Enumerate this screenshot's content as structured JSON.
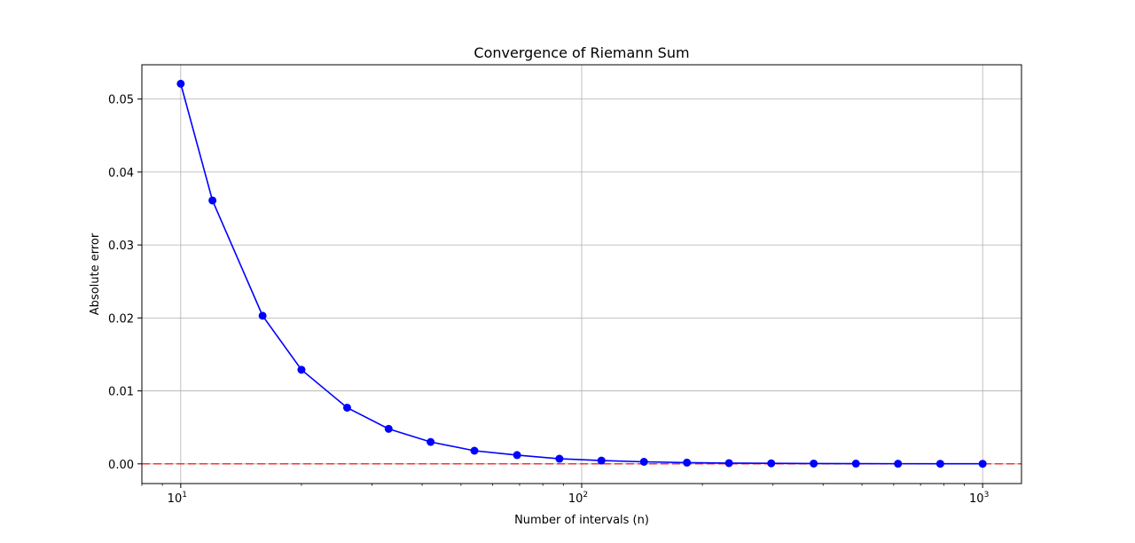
{
  "chart_data": {
    "type": "line",
    "title": "Convergence of Riemann Sum",
    "xlabel": "Number of intervals (n)",
    "ylabel": "Absolute error",
    "xscale": "log",
    "xlim": [
      8,
      1250
    ],
    "ylim": [
      -0.0027,
      0.0547
    ],
    "grid": true,
    "x_ticks": [
      {
        "value": 10,
        "base": "10",
        "exp": "1"
      },
      {
        "value": 100,
        "base": "10",
        "exp": "2"
      },
      {
        "value": 1000,
        "base": "10",
        "exp": "3"
      }
    ],
    "y_ticks": [
      {
        "value": 0,
        "label": "0.00"
      },
      {
        "value": 0.01,
        "label": "0.01"
      },
      {
        "value": 0.02,
        "label": "0.02"
      },
      {
        "value": 0.03,
        "label": "0.03"
      },
      {
        "value": 0.04,
        "label": "0.04"
      },
      {
        "value": 0.05,
        "label": "0.05"
      }
    ],
    "series": [
      {
        "color": "#0000ff",
        "marker": "circle",
        "x": [
          10,
          12,
          16,
          20,
          26,
          33,
          42,
          54,
          69,
          88,
          112,
          143,
          183,
          233,
          297,
          379,
          483,
          615,
          784,
          1000
        ],
        "y": [
          0.0521,
          0.0361,
          0.0203,
          0.0129,
          0.0077,
          0.0048,
          0.003,
          0.0018,
          0.0012,
          0.0007,
          0.00045,
          0.00028,
          0.00017,
          0.0001,
          7e-05,
          4e-05,
          3e-05,
          2e-05,
          1e-05,
          1e-05
        ]
      }
    ],
    "reference_line": {
      "y": 0,
      "color": "#ff0000",
      "style": "dashed"
    }
  }
}
